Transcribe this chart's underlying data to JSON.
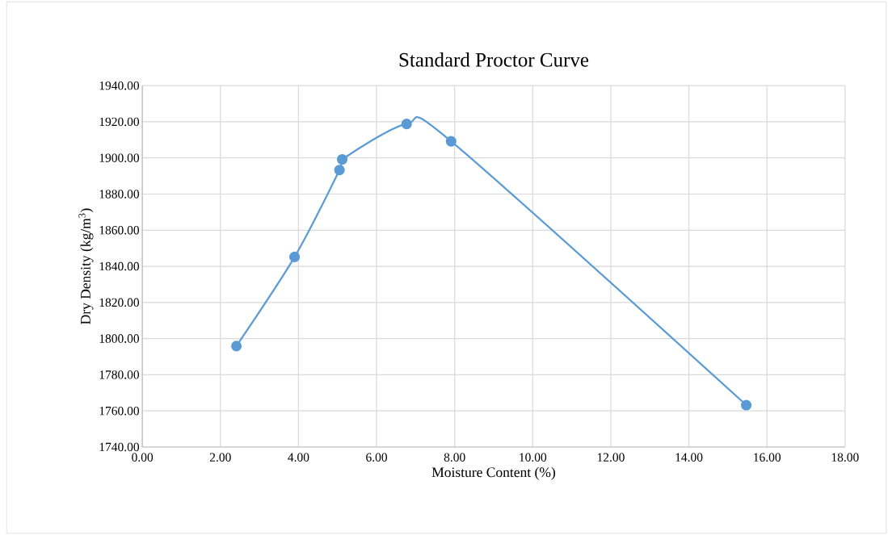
{
  "chart_data": {
    "type": "line",
    "title": "Standard Proctor Curve",
    "xlabel": "Moisture Content (%)",
    "ylabel": "Dry Density (kg/m$^{3}$)",
    "series": [
      {
        "x": [
          2.41,
          3.9,
          5.05,
          5.12,
          6.77,
          7.91,
          15.47
        ],
        "values": [
          1795.9,
          1845.2,
          1893.3,
          1899.2,
          1918.8,
          1909.2,
          1763.2
        ],
        "color": "#5b9bd5"
      }
    ],
    "xlim": [
      0,
      18
    ],
    "xticks": [
      {
        "value": 0,
        "label": "0.00"
      },
      {
        "value": 2,
        "label": "2.00"
      },
      {
        "value": 4,
        "label": "4.00"
      },
      {
        "value": 6,
        "label": "6.00"
      },
      {
        "value": 8,
        "label": "8.00"
      },
      {
        "value": 10,
        "label": "10.00"
      },
      {
        "value": 12,
        "label": "12.00"
      },
      {
        "value": 14,
        "label": "14.00"
      },
      {
        "value": 16,
        "label": "16.00"
      },
      {
        "value": 18,
        "label": "18.00"
      }
    ],
    "ylim": [
      1740,
      1940
    ],
    "yticks": [
      {
        "value": 1740,
        "label": "1740.00"
      },
      {
        "value": 1760,
        "label": "1760.00"
      },
      {
        "value": 1780,
        "label": "1780.00"
      },
      {
        "value": 1800,
        "label": "1800.00"
      },
      {
        "value": 1820,
        "label": "1820.00"
      },
      {
        "value": 1840,
        "label": "1840.00"
      },
      {
        "value": 1860,
        "label": "1860.00"
      },
      {
        "value": 1880,
        "label": "1880.00"
      },
      {
        "value": 1900,
        "label": "1900.00"
      },
      {
        "value": 1920,
        "label": "1920.00"
      },
      {
        "value": 1940,
        "label": "1940.00"
      }
    ],
    "grid": true,
    "marker": "circle",
    "line_style": "solid"
  }
}
